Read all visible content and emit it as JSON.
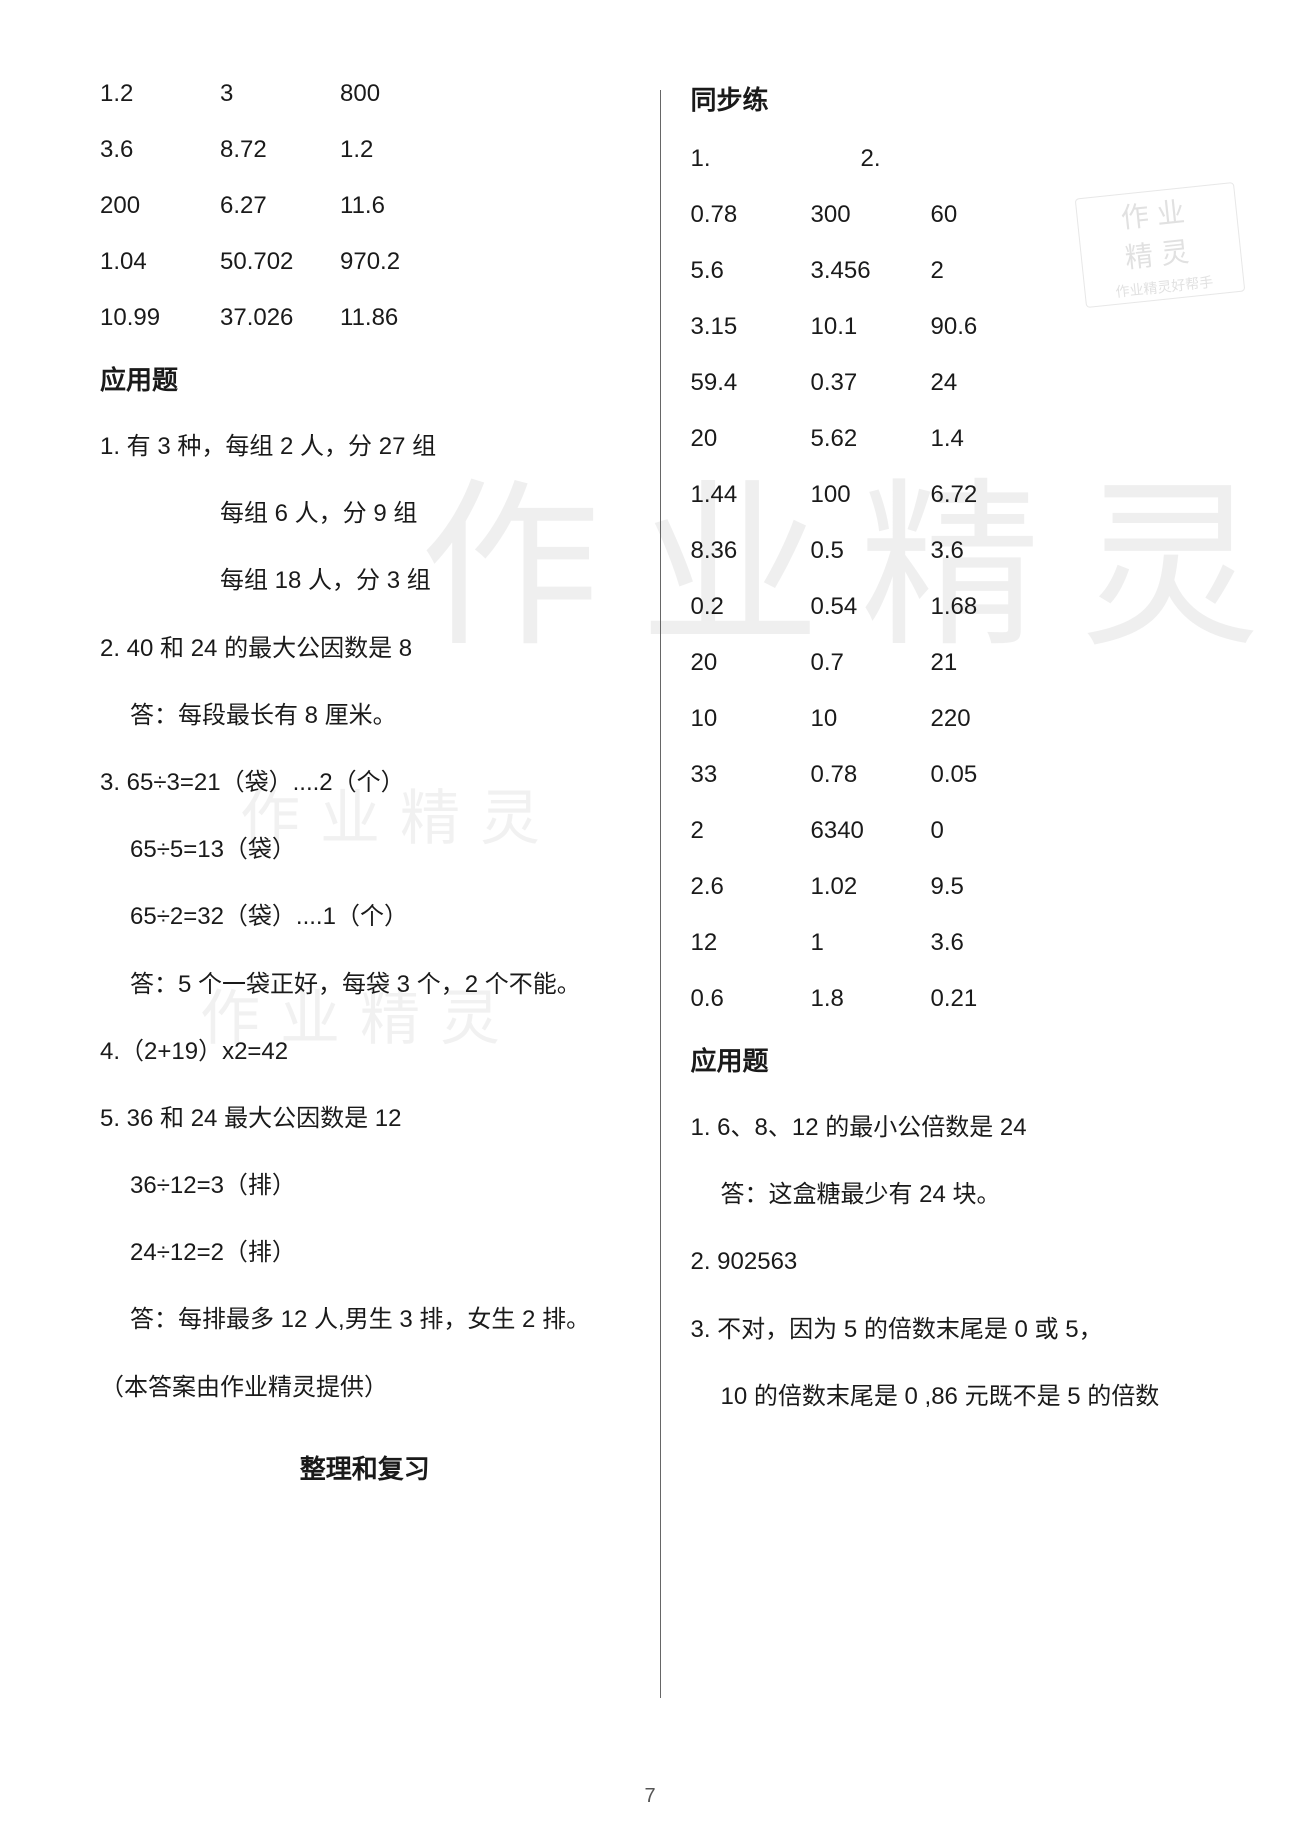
{
  "pageNumber": "7",
  "watermarks": {
    "big1": "作业精灵",
    "mid1": "作业精灵",
    "mid2": "作业精灵"
  },
  "stamp": {
    "line1": "作业",
    "line2": "精灵",
    "line3": "作业精灵好帮手"
  },
  "left": {
    "numRows": [
      [
        "1.2",
        "3",
        "800"
      ],
      [
        "3.6",
        "8.72",
        "1.2"
      ],
      [
        "200",
        "6.27",
        "11.6"
      ],
      [
        "1.04",
        "50.702",
        "970.2"
      ],
      [
        "10.99",
        "37.026",
        "11.86"
      ]
    ],
    "heading1": "应用题",
    "lines": [
      {
        "text": "1. 有 3 种，每组 2 人，分 27 组",
        "indent": 0
      },
      {
        "text": "每组 6 人，分 9 组",
        "indent": 2
      },
      {
        "text": "每组 18 人，分 3 组",
        "indent": 2
      },
      {
        "text": "2. 40 和 24 的最大公因数是 8",
        "indent": 0
      },
      {
        "text": "答：每段最长有 8 厘米。",
        "indent": 1
      },
      {
        "text": "3. 65÷3=21（袋）....2（个）",
        "indent": 0
      },
      {
        "text": "65÷5=13（袋）",
        "indent": 1
      },
      {
        "text": "65÷2=32（袋）....1（个）",
        "indent": 1
      },
      {
        "text": "答：5 个一袋正好，每袋 3 个，2 个不能。",
        "indent": 1
      },
      {
        "text": "4.（2+19）x2=42",
        "indent": 0
      },
      {
        "text": "5. 36 和 24 最大公因数是 12",
        "indent": 0
      },
      {
        "text": "36÷12=3（排）",
        "indent": 1
      },
      {
        "text": "24÷12=2（排）",
        "indent": 1
      },
      {
        "text": "答：每排最多 12 人,男生 3 排，女生 2 排。",
        "indent": 1
      },
      {
        "text": "（本答案由作业精灵提供）",
        "indent": 0
      }
    ],
    "bottomHeading": "整理和复习"
  },
  "right": {
    "heading1": "同步练",
    "topRow": {
      "a": "1.",
      "b": "2."
    },
    "numRows": [
      [
        "0.78",
        "300",
        "60"
      ],
      [
        "5.6",
        "3.456",
        "2"
      ],
      [
        "3.15",
        "10.1",
        "90.6"
      ],
      [
        "59.4",
        "0.37",
        "24"
      ],
      [
        "20",
        "5.62",
        "1.4"
      ],
      [
        "1.44",
        "100",
        "6.72"
      ],
      [
        "8.36",
        "0.5",
        "3.6"
      ],
      [
        "0.2",
        "0.54",
        "1.68"
      ],
      [
        "20",
        "0.7",
        "21"
      ],
      [
        "10",
        "10",
        "220"
      ],
      [
        "33",
        "0.78",
        "0.05"
      ],
      [
        "2",
        "6340",
        "0"
      ],
      [
        "2.6",
        "1.02",
        "9.5"
      ],
      [
        "12",
        "1",
        "3.6"
      ],
      [
        "0.6",
        "1.8",
        "0.21"
      ]
    ],
    "heading2": "应用题",
    "lines": [
      {
        "text": "1. 6、8、12 的最小公倍数是 24",
        "indent": 0
      },
      {
        "text": "答：这盒糖最少有 24 块。",
        "indent": 1
      },
      {
        "text": "2. 902563",
        "indent": 0
      },
      {
        "text": "3. 不对，因为 5 的倍数末尾是 0 或 5，",
        "indent": 0
      },
      {
        "text": "10 的倍数末尾是 0 ,86 元既不是 5 的倍数",
        "indent": 1
      }
    ]
  }
}
